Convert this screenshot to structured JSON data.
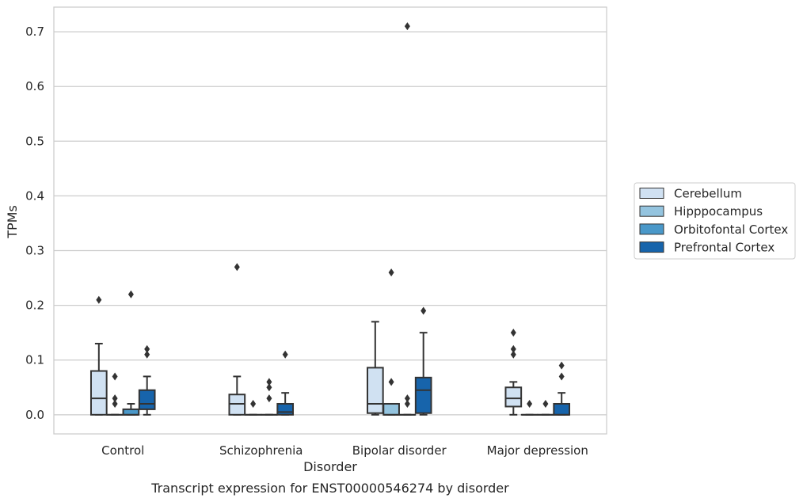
{
  "chart_data": {
    "type": "box",
    "title": "Transcript expression for ENST00000546274 by disorder",
    "xlabel": "Disorder",
    "ylabel": "TPMs",
    "ylim": [
      -0.035,
      0.745
    ],
    "yticks": [
      0.0,
      0.1,
      0.2,
      0.3,
      0.4,
      0.5,
      0.6,
      0.7
    ],
    "ytick_labels": [
      "0.0",
      "0.1",
      "0.2",
      "0.3",
      "0.4",
      "0.5",
      "0.6",
      "0.7"
    ],
    "grid": true,
    "legend_position": "right",
    "categories": [
      "Control",
      "Schizophrenia",
      "Bipolar disorder",
      "Major depression"
    ],
    "series": [
      {
        "name": "Cerebellum",
        "color": "#d0e1f2",
        "boxes": [
          {
            "q1": 0.0,
            "median": 0.03,
            "q3": 0.08,
            "whislo": 0.0,
            "whishi": 0.13,
            "fliers": [
              0.21
            ]
          },
          {
            "q1": 0.0,
            "median": 0.02,
            "q3": 0.037,
            "whislo": 0.0,
            "whishi": 0.07,
            "fliers": [
              0.27
            ]
          },
          {
            "q1": 0.003,
            "median": 0.02,
            "q3": 0.086,
            "whislo": 0.0,
            "whishi": 0.17,
            "fliers": []
          },
          {
            "q1": 0.015,
            "median": 0.03,
            "q3": 0.05,
            "whislo": 0.0,
            "whishi": 0.06,
            "fliers": [
              0.15,
              0.12,
              0.11
            ]
          }
        ]
      },
      {
        "name": "Hipppocampus",
        "color": "#94c4df",
        "boxes": [
          {
            "q1": 0.0,
            "median": 0.0,
            "q3": 0.0,
            "whislo": 0.0,
            "whishi": 0.0,
            "fliers": [
              0.07,
              0.03,
              0.02
            ]
          },
          {
            "q1": 0.0,
            "median": 0.0,
            "q3": 0.0,
            "whislo": 0.0,
            "whishi": 0.0,
            "fliers": [
              0.02
            ]
          },
          {
            "q1": 0.0,
            "median": 0.0,
            "q3": 0.02,
            "whislo": 0.0,
            "whishi": 0.02,
            "fliers": [
              0.26,
              0.06
            ]
          },
          {
            "q1": 0.0,
            "median": 0.0,
            "q3": 0.0,
            "whislo": 0.0,
            "whishi": 0.0,
            "fliers": [
              0.02
            ]
          }
        ]
      },
      {
        "name": "Orbitofontal Cortex",
        "color": "#4a98c9",
        "boxes": [
          {
            "q1": 0.0,
            "median": 0.0,
            "q3": 0.01,
            "whislo": 0.0,
            "whishi": 0.02,
            "fliers": [
              0.22
            ]
          },
          {
            "q1": 0.0,
            "median": 0.0,
            "q3": 0.0,
            "whislo": 0.0,
            "whishi": 0.0,
            "fliers": [
              0.06,
              0.05,
              0.03
            ]
          },
          {
            "q1": 0.0,
            "median": 0.0,
            "q3": 0.0,
            "whislo": 0.0,
            "whishi": 0.0,
            "fliers": [
              0.71,
              0.03,
              0.02
            ]
          },
          {
            "q1": 0.0,
            "median": 0.0,
            "q3": 0.0,
            "whislo": 0.0,
            "whishi": 0.0,
            "fliers": [
              0.02
            ]
          }
        ]
      },
      {
        "name": "Prefrontal Cortex",
        "color": "#1764ab",
        "boxes": [
          {
            "q1": 0.01,
            "median": 0.02,
            "q3": 0.045,
            "whislo": 0.0,
            "whishi": 0.07,
            "fliers": [
              0.12,
              0.11
            ]
          },
          {
            "q1": 0.0,
            "median": 0.005,
            "q3": 0.02,
            "whislo": 0.0,
            "whishi": 0.04,
            "fliers": [
              0.11
            ]
          },
          {
            "q1": 0.003,
            "median": 0.045,
            "q3": 0.068,
            "whislo": 0.0,
            "whishi": 0.15,
            "fliers": [
              0.19
            ]
          },
          {
            "q1": 0.0,
            "median": 0.0,
            "q3": 0.02,
            "whislo": 0.0,
            "whishi": 0.04,
            "fliers": [
              0.09,
              0.07
            ]
          }
        ]
      }
    ]
  },
  "style": {
    "grid_color": "#cccccc",
    "frame_color": "#cccccc",
    "line_color": "#333333"
  }
}
